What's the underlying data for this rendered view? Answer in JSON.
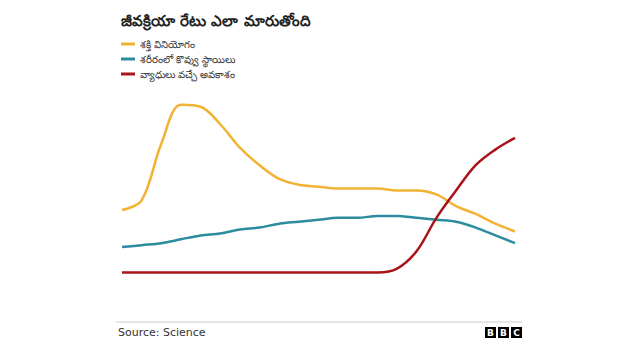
{
  "chart_data": {
    "type": "line",
    "title": "జీవక్రియా రేటు ఎలా మారుతోంది",
    "x": [
      0,
      5,
      10,
      15,
      20,
      25,
      30,
      35,
      40,
      45,
      50,
      55,
      60,
      65,
      70,
      75,
      80,
      85,
      90,
      95,
      100
    ],
    "xlim": [
      0,
      100
    ],
    "ylim": [
      0,
      100
    ],
    "tick_labels": false,
    "grid": false,
    "legend": "top-left",
    "series": [
      {
        "name": "శక్తి వినియోగం",
        "color": "#f2b234",
        "values": [
          41,
          46,
          75,
          95,
          94,
          85,
          73,
          64,
          57,
          54,
          53,
          52,
          52,
          52,
          51,
          51,
          49,
          43,
          39,
          34,
          30
        ]
      },
      {
        "name": "శరీరంలో కొవ్వు స్థాయిలు",
        "color": "#2a8c9e",
        "values": [
          22,
          23,
          24,
          26,
          28,
          29,
          31,
          32,
          34,
          35,
          36,
          37,
          37,
          38,
          38,
          37,
          36,
          35,
          32,
          28,
          24
        ]
      },
      {
        "name": "వ్యాధులు వచ్చే అవకాశం",
        "color": "#a8141a",
        "values": [
          9,
          9,
          9,
          9,
          9,
          9,
          9,
          9,
          9,
          9,
          9,
          9,
          9,
          9,
          11,
          20,
          37,
          51,
          64,
          72,
          78
        ]
      }
    ],
    "source": "Source: Science",
    "credit": "BBC"
  }
}
